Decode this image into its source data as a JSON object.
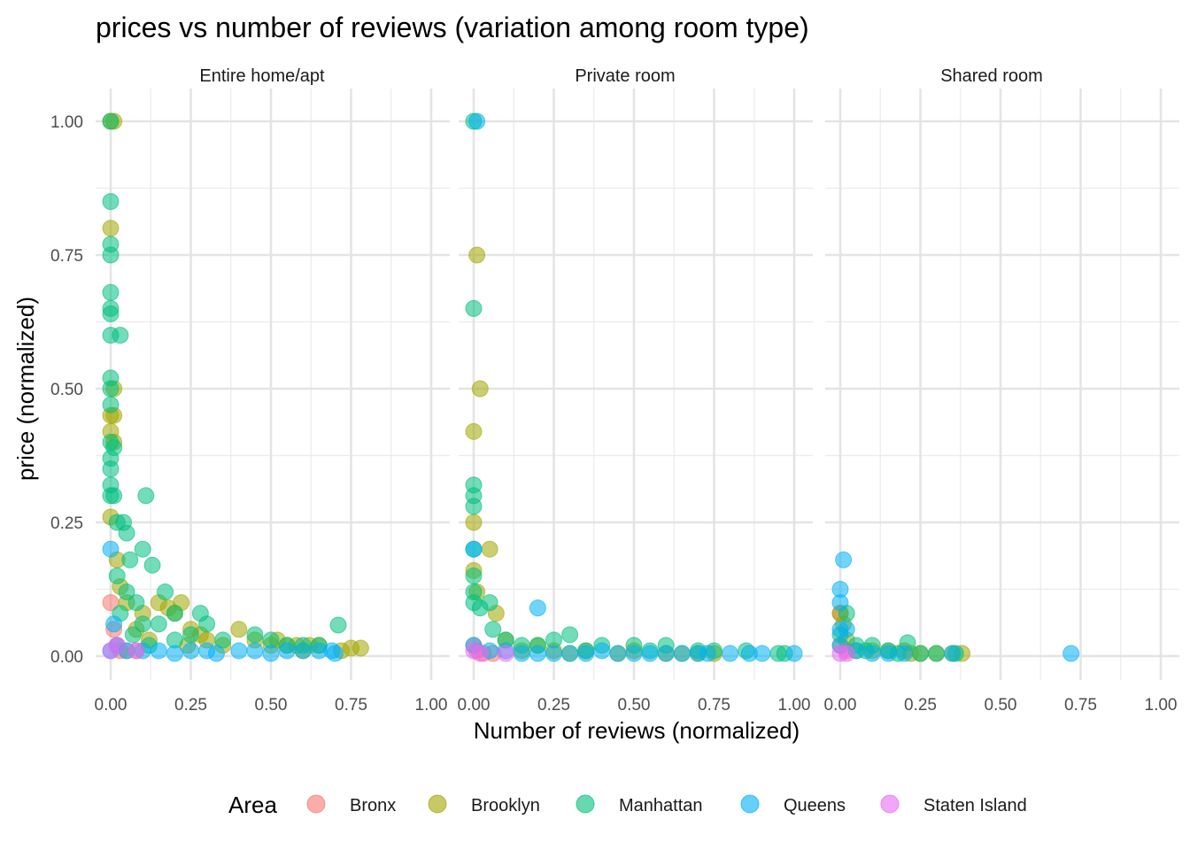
{
  "chart_data": {
    "type": "scatter",
    "title": "prices vs number of reviews (variation among room type)",
    "xlabel": "Number of reviews (normalized)",
    "ylabel": "price (normalized)",
    "xlim": [
      0,
      1
    ],
    "ylim": [
      0,
      1
    ],
    "x_ticks": [
      "0.00",
      "0.25",
      "0.50",
      "0.75",
      "1.00"
    ],
    "y_ticks": [
      "0.00",
      "0.25",
      "0.50",
      "0.75",
      "1.00"
    ],
    "grid": true,
    "legend": {
      "title": "Area",
      "placement": "bottom",
      "entries": [
        {
          "name": "Bronx",
          "color": "#F8766D"
        },
        {
          "name": "Brooklyn",
          "color": "#A3A500"
        },
        {
          "name": "Manhattan",
          "color": "#00BF7D"
        },
        {
          "name": "Queens",
          "color": "#00B0F6"
        },
        {
          "name": "Staten Island",
          "color": "#E76BF3"
        }
      ]
    },
    "facets": [
      {
        "label": "Entire home/apt",
        "series": [
          {
            "name": "Bronx",
            "points": [
              [
                0.0,
                0.1
              ],
              [
                0.01,
                0.05
              ],
              [
                0.02,
                0.02
              ],
              [
                0.03,
                0.01
              ],
              [
                0.05,
                0.01
              ],
              [
                0.08,
                0.01
              ]
            ]
          },
          {
            "name": "Brooklyn",
            "points": [
              [
                0.0,
                1.0
              ],
              [
                0.01,
                1.0
              ],
              [
                0.0,
                0.8
              ],
              [
                0.01,
                0.5
              ],
              [
                0.0,
                0.45
              ],
              [
                0.01,
                0.45
              ],
              [
                0.0,
                0.42
              ],
              [
                0.01,
                0.4
              ],
              [
                0.0,
                0.26
              ],
              [
                0.02,
                0.18
              ],
              [
                0.03,
                0.13
              ],
              [
                0.05,
                0.1
              ],
              [
                0.1,
                0.08
              ],
              [
                0.15,
                0.1
              ],
              [
                0.18,
                0.09
              ],
              [
                0.2,
                0.08
              ],
              [
                0.22,
                0.1
              ],
              [
                0.25,
                0.05
              ],
              [
                0.28,
                0.04
              ],
              [
                0.3,
                0.03
              ],
              [
                0.35,
                0.02
              ],
              [
                0.4,
                0.05
              ],
              [
                0.45,
                0.03
              ],
              [
                0.5,
                0.02
              ],
              [
                0.52,
                0.03
              ],
              [
                0.55,
                0.02
              ],
              [
                0.58,
                0.02
              ],
              [
                0.6,
                0.01
              ],
              [
                0.62,
                0.02
              ],
              [
                0.65,
                0.02
              ],
              [
                0.72,
                0.01
              ],
              [
                0.75,
                0.015
              ],
              [
                0.78,
                0.015
              ],
              [
                0.08,
                0.05
              ],
              [
                0.12,
                0.03
              ],
              [
                0.24,
                0.02
              ]
            ]
          },
          {
            "name": "Manhattan",
            "points": [
              [
                0.0,
                1.0
              ],
              [
                0.0,
                0.85
              ],
              [
                0.0,
                0.77
              ],
              [
                0.0,
                0.75
              ],
              [
                0.0,
                0.68
              ],
              [
                0.0,
                0.65
              ],
              [
                0.0,
                0.64
              ],
              [
                0.0,
                0.6
              ],
              [
                0.03,
                0.6
              ],
              [
                0.0,
                0.52
              ],
              [
                0.0,
                0.5
              ],
              [
                0.0,
                0.47
              ],
              [
                0.0,
                0.4
              ],
              [
                0.01,
                0.39
              ],
              [
                0.0,
                0.37
              ],
              [
                0.0,
                0.35
              ],
              [
                0.0,
                0.32
              ],
              [
                0.0,
                0.3
              ],
              [
                0.01,
                0.3
              ],
              [
                0.11,
                0.3
              ],
              [
                0.02,
                0.25
              ],
              [
                0.04,
                0.25
              ],
              [
                0.05,
                0.23
              ],
              [
                0.1,
                0.2
              ],
              [
                0.06,
                0.18
              ],
              [
                0.13,
                0.17
              ],
              [
                0.02,
                0.15
              ],
              [
                0.05,
                0.12
              ],
              [
                0.08,
                0.1
              ],
              [
                0.17,
                0.12
              ],
              [
                0.2,
                0.08
              ],
              [
                0.15,
                0.06
              ],
              [
                0.28,
                0.08
              ],
              [
                0.3,
                0.06
              ],
              [
                0.25,
                0.04
              ],
              [
                0.35,
                0.03
              ],
              [
                0.45,
                0.04
              ],
              [
                0.5,
                0.03
              ],
              [
                0.55,
                0.02
              ],
              [
                0.6,
                0.02
              ],
              [
                0.65,
                0.02
              ],
              [
                0.71,
                0.058
              ],
              [
                0.1,
                0.06
              ],
              [
                0.03,
                0.08
              ],
              [
                0.07,
                0.04
              ],
              [
                0.12,
                0.02
              ],
              [
                0.2,
                0.03
              ]
            ]
          },
          {
            "name": "Queens",
            "points": [
              [
                0.0,
                0.01
              ],
              [
                0.02,
                0.02
              ],
              [
                0.05,
                0.01
              ],
              [
                0.1,
                0.01
              ],
              [
                0.15,
                0.01
              ],
              [
                0.2,
                0.005
              ],
              [
                0.25,
                0.01
              ],
              [
                0.3,
                0.01
              ],
              [
                0.33,
                0.005
              ],
              [
                0.4,
                0.01
              ],
              [
                0.45,
                0.01
              ],
              [
                0.5,
                0.005
              ],
              [
                0.55,
                0.01
              ],
              [
                0.6,
                0.01
              ],
              [
                0.65,
                0.01
              ],
              [
                0.69,
                0.01
              ],
              [
                0.7,
                0.005
              ],
              [
                0.0,
                0.2
              ],
              [
                0.01,
                0.06
              ]
            ]
          },
          {
            "name": "Staten Island",
            "points": [
              [
                0.0,
                0.01
              ],
              [
                0.02,
                0.02
              ],
              [
                0.08,
                0.01
              ]
            ]
          }
        ]
      },
      {
        "label": "Private room",
        "series": [
          {
            "name": "Bronx",
            "points": [
              [
                0.0,
                0.02
              ],
              [
                0.01,
                0.01
              ],
              [
                0.03,
                0.005
              ],
              [
                0.06,
                0.005
              ]
            ]
          },
          {
            "name": "Brooklyn",
            "points": [
              [
                0.01,
                0.75
              ],
              [
                0.02,
                0.5
              ],
              [
                0.0,
                0.42
              ],
              [
                0.0,
                0.25
              ],
              [
                0.05,
                0.2
              ],
              [
                0.0,
                0.16
              ],
              [
                0.01,
                0.12
              ],
              [
                0.07,
                0.08
              ],
              [
                0.1,
                0.03
              ],
              [
                0.15,
                0.01
              ],
              [
                0.2,
                0.02
              ],
              [
                0.25,
                0.01
              ],
              [
                0.3,
                0.005
              ],
              [
                0.35,
                0.01
              ],
              [
                0.45,
                0.005
              ],
              [
                0.5,
                0.01
              ],
              [
                0.6,
                0.005
              ],
              [
                0.65,
                0.005
              ],
              [
                0.7,
                0.005
              ],
              [
                0.75,
                0.005
              ]
            ]
          },
          {
            "name": "Manhattan",
            "points": [
              [
                0.0,
                1.0
              ],
              [
                0.0,
                0.65
              ],
              [
                0.0,
                0.32
              ],
              [
                0.0,
                0.3
              ],
              [
                0.0,
                0.28
              ],
              [
                0.0,
                0.2
              ],
              [
                0.0,
                0.15
              ],
              [
                0.0,
                0.12
              ],
              [
                0.0,
                0.1
              ],
              [
                0.02,
                0.09
              ],
              [
                0.05,
                0.1
              ],
              [
                0.06,
                0.05
              ],
              [
                0.1,
                0.03
              ],
              [
                0.15,
                0.02
              ],
              [
                0.2,
                0.02
              ],
              [
                0.25,
                0.03
              ],
              [
                0.3,
                0.04
              ],
              [
                0.35,
                0.01
              ],
              [
                0.4,
                0.02
              ],
              [
                0.5,
                0.02
              ],
              [
                0.55,
                0.01
              ],
              [
                0.6,
                0.02
              ],
              [
                0.7,
                0.01
              ],
              [
                0.75,
                0.01
              ],
              [
                0.85,
                0.01
              ],
              [
                0.95,
                0.005
              ],
              [
                0.97,
                0.005
              ]
            ]
          },
          {
            "name": "Queens",
            "points": [
              [
                0.01,
                1.0
              ],
              [
                0.0,
                0.2
              ],
              [
                0.2,
                0.09
              ],
              [
                0.0,
                0.02
              ],
              [
                0.05,
                0.01
              ],
              [
                0.1,
                0.01
              ],
              [
                0.15,
                0.005
              ],
              [
                0.2,
                0.005
              ],
              [
                0.25,
                0.005
              ],
              [
                0.3,
                0.005
              ],
              [
                0.35,
                0.005
              ],
              [
                0.4,
                0.01
              ],
              [
                0.45,
                0.005
              ],
              [
                0.5,
                0.005
              ],
              [
                0.55,
                0.005
              ],
              [
                0.6,
                0.005
              ],
              [
                0.65,
                0.005
              ],
              [
                0.7,
                0.005
              ],
              [
                0.73,
                0.005
              ],
              [
                0.8,
                0.005
              ],
              [
                0.86,
                0.005
              ],
              [
                0.9,
                0.005
              ],
              [
                1.0,
                0.005
              ]
            ]
          },
          {
            "name": "Staten Island",
            "points": [
              [
                0.0,
                0.01
              ],
              [
                0.02,
                0.005
              ],
              [
                0.1,
                0.005
              ]
            ]
          }
        ]
      },
      {
        "label": "Shared room",
        "series": [
          {
            "name": "Bronx",
            "points": [
              [
                0.0,
                0.08
              ],
              [
                0.0,
                0.02
              ],
              [
                0.02,
                0.01
              ]
            ]
          },
          {
            "name": "Brooklyn",
            "points": [
              [
                0.0,
                0.08
              ],
              [
                0.01,
                0.06
              ],
              [
                0.02,
                0.03
              ],
              [
                0.05,
                0.01
              ],
              [
                0.1,
                0.01
              ],
              [
                0.15,
                0.01
              ],
              [
                0.2,
                0.01
              ],
              [
                0.22,
                0.005
              ],
              [
                0.25,
                0.005
              ],
              [
                0.3,
                0.005
              ],
              [
                0.35,
                0.005
              ],
              [
                0.38,
                0.005
              ]
            ]
          },
          {
            "name": "Manhattan",
            "points": [
              [
                0.02,
                0.08
              ],
              [
                0.0,
                0.04
              ],
              [
                0.05,
                0.02
              ],
              [
                0.08,
                0.01
              ],
              [
                0.1,
                0.02
              ],
              [
                0.15,
                0.01
              ],
              [
                0.18,
                0.005
              ],
              [
                0.21,
                0.025
              ],
              [
                0.25,
                0.005
              ],
              [
                0.3,
                0.005
              ],
              [
                0.36,
                0.005
              ]
            ]
          },
          {
            "name": "Queens",
            "points": [
              [
                0.01,
                0.18
              ],
              [
                0.0,
                0.125
              ],
              [
                0.0,
                0.1
              ],
              [
                0.0,
                0.05
              ],
              [
                0.02,
                0.05
              ],
              [
                0.0,
                0.02
              ],
              [
                0.05,
                0.01
              ],
              [
                0.1,
                0.005
              ],
              [
                0.15,
                0.005
              ],
              [
                0.2,
                0.005
              ],
              [
                0.35,
                0.005
              ],
              [
                0.72,
                0.005
              ]
            ]
          },
          {
            "name": "Staten Island",
            "points": [
              [
                0.0,
                0.005
              ],
              [
                0.02,
                0.005
              ]
            ]
          }
        ]
      }
    ]
  }
}
